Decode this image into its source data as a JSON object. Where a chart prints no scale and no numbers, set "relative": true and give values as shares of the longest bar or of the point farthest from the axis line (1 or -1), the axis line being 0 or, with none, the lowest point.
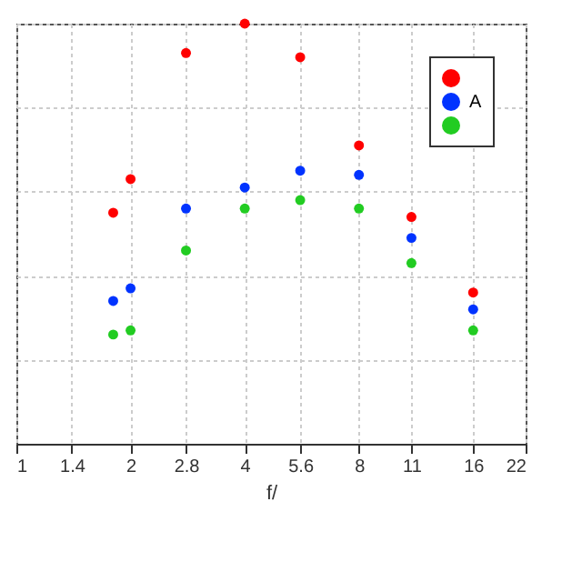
{
  "chart_data": {
    "type": "scatter",
    "xlabel": "f/",
    "relative": true,
    "log": "x",
    "xlim": [
      1,
      22
    ],
    "xticks": [
      1,
      1.4,
      2,
      2.8,
      4,
      5.6,
      8,
      11,
      16,
      22
    ],
    "grid": true,
    "legend": "top right",
    "marker": "circle",
    "x": [
      1.8,
      2,
      2.8,
      4,
      5.6,
      8,
      11,
      16
    ],
    "series": [
      {
        "color": "#ff0000",
        "values": [
          0.55,
          0.63,
          0.93,
          1,
          0.92,
          0.71,
          0.54,
          0.36
        ]
      },
      {
        "name": "A",
        "color": "#0033ff",
        "values": [
          0.34,
          0.37,
          0.56,
          0.61,
          0.65,
          0.64,
          0.49,
          0.32
        ]
      },
      {
        "color": "#22cc22",
        "values": [
          0.26,
          0.27,
          0.46,
          0.56,
          0.58,
          0.56,
          0.43,
          0.27
        ]
      }
    ]
  }
}
